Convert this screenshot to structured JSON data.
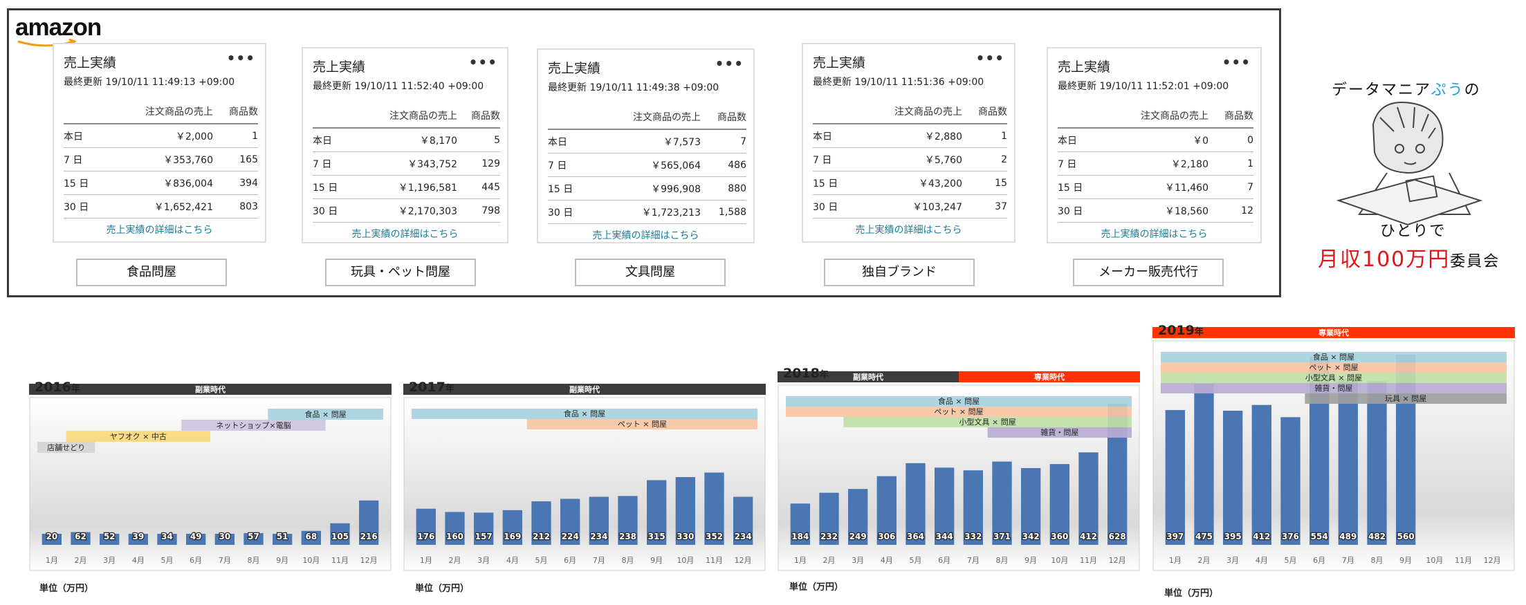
{
  "logo": {
    "text": "amazon"
  },
  "cards": [
    {
      "title": "売上実績",
      "updated": "最終更新 19/10/11 11:49:13 +09:00",
      "col_sales": "注文商品の売上",
      "col_count": "商品数",
      "rows": [
        {
          "label": "本日",
          "sales": "￥2,000",
          "count": "1"
        },
        {
          "label": "7 日",
          "sales": "￥353,760",
          "count": "165"
        },
        {
          "label": "15 日",
          "sales": "￥836,004",
          "count": "394"
        },
        {
          "label": "30 日",
          "sales": "￥1,652,421",
          "count": "803"
        }
      ],
      "link": "売上実績の詳細はこちら",
      "category": "食品問屋"
    },
    {
      "title": "売上実績",
      "updated": "最終更新 19/10/11 11:52:40 +09:00",
      "col_sales": "注文商品の売上",
      "col_count": "商品数",
      "rows": [
        {
          "label": "本日",
          "sales": "￥8,170",
          "count": "5"
        },
        {
          "label": "7 日",
          "sales": "￥343,752",
          "count": "129"
        },
        {
          "label": "15 日",
          "sales": "￥1,196,581",
          "count": "445"
        },
        {
          "label": "30 日",
          "sales": "￥2,170,303",
          "count": "798"
        }
      ],
      "link": "売上実績の詳細はこちら",
      "category": "玩具・ペット問屋"
    },
    {
      "title": "売上実績",
      "updated": "最終更新 19/10/11 11:49:38 +09:00",
      "col_sales": "注文商品の売上",
      "col_count": "商品数",
      "rows": [
        {
          "label": "本日",
          "sales": "￥7,573",
          "count": "7"
        },
        {
          "label": "7 日",
          "sales": "￥565,064",
          "count": "486"
        },
        {
          "label": "15 日",
          "sales": "￥996,908",
          "count": "880"
        },
        {
          "label": "30 日",
          "sales": "￥1,723,213",
          "count": "1,588"
        }
      ],
      "link": "売上実績の詳細はこちら",
      "category": "文具問屋"
    },
    {
      "title": "売上実績",
      "updated": "最終更新 19/10/11 11:51:36 +09:00",
      "col_sales": "注文商品の売上",
      "col_count": "商品数",
      "rows": [
        {
          "label": "本日",
          "sales": "￥2,880",
          "count": "1"
        },
        {
          "label": "7 日",
          "sales": "￥5,760",
          "count": "2"
        },
        {
          "label": "15 日",
          "sales": "￥43,200",
          "count": "15"
        },
        {
          "label": "30 日",
          "sales": "￥103,247",
          "count": "37"
        }
      ],
      "link": "売上実績の詳細はこちら",
      "category": "独自ブランド"
    },
    {
      "title": "売上実績",
      "updated": "最終更新 19/10/11 11:52:01 +09:00",
      "col_sales": "注文商品の売上",
      "col_count": "商品数",
      "rows": [
        {
          "label": "本日",
          "sales": "￥0",
          "count": "0"
        },
        {
          "label": "7 日",
          "sales": "￥2,180",
          "count": "1"
        },
        {
          "label": "15 日",
          "sales": "￥11,460",
          "count": "7"
        },
        {
          "label": "30 日",
          "sales": "￥18,560",
          "count": "12"
        }
      ],
      "link": "売上実績の詳細はこちら",
      "category": "メーカー販売代行"
    }
  ],
  "brand": {
    "line1_pre": "データマニア",
    "line1_pu": "ぷう",
    "line1_post": "の",
    "line2": "ひとりで",
    "line3_red": "月収100万円",
    "line3_post": "委員会"
  },
  "colors": {
    "bar": "#4a76b4",
    "phase_dark": "#3c3c3c",
    "phase_red": "#ff3300",
    "lightblue": "#a7d3e0",
    "peach": "#f9c6a3",
    "yellow": "#fbd97a",
    "lavender": "#cdc3df",
    "gray": "#d4d4d4",
    "green": "#bfe0a6",
    "purple": "#b9acd2"
  },
  "chart_data": [
    {
      "type": "bar",
      "year": "2016",
      "year_suffix": "年",
      "unit": "単位（万円）",
      "categories": [
        "1月",
        "2月",
        "3月",
        "4月",
        "5月",
        "6月",
        "7月",
        "8月",
        "9月",
        "10月",
        "11月",
        "12月"
      ],
      "values": [
        20,
        62,
        52,
        39,
        34,
        49,
        30,
        57,
        51,
        68,
        105,
        216
      ],
      "phases": [
        {
          "label": "副業時代",
          "from": 1,
          "to": 12,
          "color": "#3c3c3c"
        }
      ],
      "ranges": [
        {
          "label": "食品 × 問屋",
          "from": 9,
          "to": 12,
          "color": "#a7d3e0"
        },
        {
          "label": "ネットショップ×電脳",
          "from": 6,
          "to": 10,
          "color": "#cdc3df"
        },
        {
          "label": "ヤフオク × 中古",
          "from": 2,
          "to": 6,
          "color": "#fbd97a"
        },
        {
          "label": "店舗せどり",
          "from": 1,
          "to": 2,
          "color": "#d4d4d4"
        }
      ]
    },
    {
      "type": "bar",
      "year": "2017",
      "year_suffix": "年",
      "unit": "単位（万円）",
      "categories": [
        "1月",
        "2月",
        "3月",
        "4月",
        "5月",
        "6月",
        "7月",
        "8月",
        "9月",
        "10月",
        "11月",
        "12月"
      ],
      "values": [
        176,
        160,
        157,
        169,
        212,
        224,
        234,
        238,
        315,
        330,
        352,
        234
      ],
      "phases": [
        {
          "label": "副業時代",
          "from": 1,
          "to": 12,
          "color": "#3c3c3c"
        }
      ],
      "ranges": [
        {
          "label": "食品 × 問屋",
          "from": 1,
          "to": 12,
          "color": "#a7d3e0"
        },
        {
          "label": "ペット × 問屋",
          "from": 5,
          "to": 12,
          "color": "#f9c6a3"
        }
      ]
    },
    {
      "type": "bar",
      "year": "2018",
      "year_suffix": "年",
      "unit": "単位（万円）",
      "categories": [
        "1月",
        "2月",
        "3月",
        "4月",
        "5月",
        "6月",
        "7月",
        "8月",
        "9月",
        "10月",
        "11月",
        "12月"
      ],
      "values": [
        184,
        232,
        249,
        306,
        364,
        344,
        332,
        371,
        342,
        360,
        412,
        628
      ],
      "phases": [
        {
          "label": "副業時代",
          "from": 1,
          "to": 6,
          "color": "#3c3c3c"
        },
        {
          "label": "専業時代",
          "from": 7,
          "to": 12,
          "color": "#ff3300"
        }
      ],
      "ranges": [
        {
          "label": "食品 × 問屋",
          "from": 1,
          "to": 12,
          "color": "#a7d3e0"
        },
        {
          "label": "ペット × 問屋",
          "from": 1,
          "to": 12,
          "color": "#f9c6a3"
        },
        {
          "label": "小型文具 × 問屋",
          "from": 3,
          "to": 12,
          "color": "#bfe0a6"
        },
        {
          "label": "雑貨・問屋",
          "from": 8,
          "to": 12,
          "color": "#b9acd2"
        }
      ]
    },
    {
      "type": "bar",
      "year": "2019",
      "year_suffix": "年",
      "unit": "単位（万円）",
      "categories": [
        "1月",
        "2月",
        "3月",
        "4月",
        "5月",
        "6月",
        "7月",
        "8月",
        "9月",
        "10月",
        "11月",
        "12月"
      ],
      "values": [
        397,
        475,
        395,
        412,
        376,
        554,
        489,
        482,
        560,
        null,
        null,
        null
      ],
      "phases": [
        {
          "label": "専業時代",
          "from": 1,
          "to": 12,
          "color": "#ff3300"
        }
      ],
      "ranges": [
        {
          "label": "食品 × 問屋",
          "from": 1,
          "to": 12,
          "color": "#a7d3e0"
        },
        {
          "label": "ペット × 問屋",
          "from": 1,
          "to": 12,
          "color": "#f9c6a3"
        },
        {
          "label": "小型文具 × 問屋",
          "from": 1,
          "to": 12,
          "color": "#bfe0a6"
        },
        {
          "label": "雑貨・問屋",
          "from": 1,
          "to": 12,
          "color": "#b9acd2"
        },
        {
          "label": "玩具 × 問屋",
          "from": 6,
          "to": 12,
          "color": "#a0a0a0"
        }
      ]
    }
  ]
}
